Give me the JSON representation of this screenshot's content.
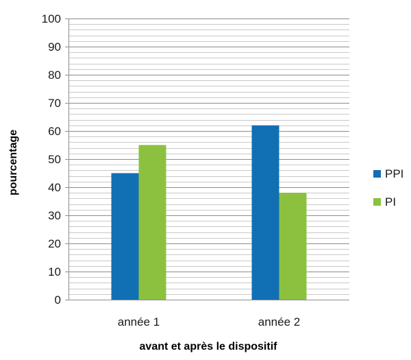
{
  "chart_data": {
    "type": "bar",
    "title": "",
    "xlabel": "avant et après le dispositif",
    "ylabel": "pourcentage",
    "categories": [
      "année 1",
      "année 2"
    ],
    "series": [
      {
        "name": "PPI",
        "values": [
          45,
          62
        ],
        "color": "#1170b4"
      },
      {
        "name": "PI",
        "values": [
          55,
          38
        ],
        "color": "#8cc13f"
      }
    ],
    "ylim": [
      0,
      100
    ],
    "yticks": [
      0,
      10,
      20,
      30,
      40,
      50,
      60,
      70,
      80,
      90,
      100
    ],
    "minor_grid_step": 2,
    "grid": true,
    "legend_position": "right"
  }
}
